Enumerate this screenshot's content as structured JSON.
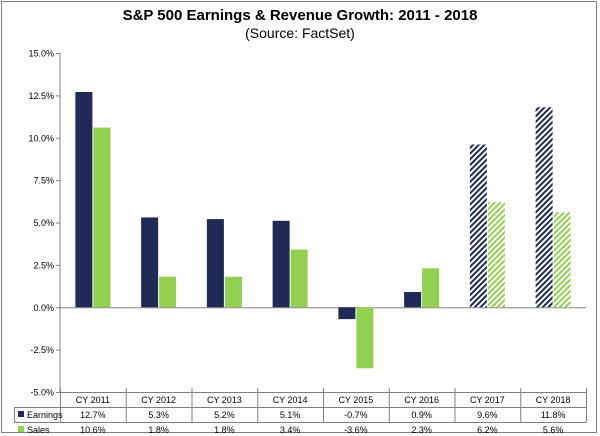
{
  "chart_data": {
    "type": "bar",
    "title": "S&P 500 Earnings & Revenue Growth:  2011 - 2018",
    "subtitle": "(Source: FactSet)",
    "categories": [
      "CY 2011",
      "CY 2012",
      "CY 2013",
      "CY 2014",
      "CY 2015",
      "CY 2016",
      "CY 2017",
      "CY 2018"
    ],
    "series": [
      {
        "name": "Earnings",
        "color": "#1f2a57",
        "values": [
          12.7,
          5.3,
          5.2,
          5.1,
          -0.7,
          0.9,
          9.6,
          11.8
        ],
        "labels": [
          "12.7%",
          "5.3%",
          "5.2%",
          "5.1%",
          "-0.7%",
          "0.9%",
          "9.6%",
          "11.8%"
        ]
      },
      {
        "name": "Sales",
        "color": "#92d050",
        "values": [
          10.6,
          1.8,
          1.8,
          3.4,
          -3.6,
          2.3,
          6.2,
          5.6
        ],
        "labels": [
          "10.6%",
          "1.8%",
          "1.8%",
          "3.4%",
          "-3.6%",
          "2.3%",
          "6.2%",
          "5.6%"
        ]
      }
    ],
    "estimate_categories": [
      "CY 2017",
      "CY 2018"
    ],
    "estimate_style": "hatched",
    "ylim": [
      -5,
      15
    ],
    "yticks": [
      -5,
      -2.5,
      0,
      2.5,
      5,
      7.5,
      10,
      12.5,
      15
    ],
    "ytick_labels": [
      "-5.0%",
      "-2.5%",
      "0.0%",
      "2.5%",
      "5.0%",
      "7.5%",
      "10.0%",
      "12.5%",
      "15.0%"
    ],
    "grid": false,
    "legend": "data-table"
  }
}
